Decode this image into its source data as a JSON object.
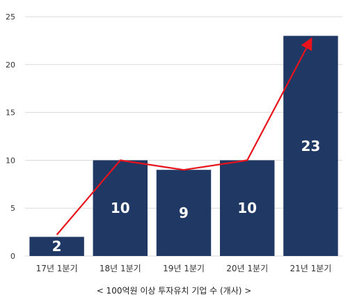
{
  "chart_data": {
    "type": "bar",
    "categories": [
      "17년 1분기",
      "18년 1분기",
      "19년 1분기",
      "20년 1분기",
      "21년 1분기"
    ],
    "values": [
      2,
      10,
      9,
      10,
      23
    ],
    "data_labels": [
      "2",
      "10",
      "9",
      "10",
      "23"
    ],
    "overlay_line": {
      "type": "line",
      "values": [
        2,
        10,
        9,
        10,
        23
      ],
      "end_arrow": true
    },
    "ylim": [
      0,
      25
    ],
    "yticks": [
      0,
      5,
      10,
      15,
      20,
      25
    ],
    "grid": true,
    "legend": "none",
    "caption": "< 100억원 이상 투자유치 기업 수 (개사) >",
    "colors": {
      "bar": "#1F3864",
      "line": "#E8131B",
      "grid": "#D9D9D9",
      "label": "#FFFFFF"
    }
  }
}
